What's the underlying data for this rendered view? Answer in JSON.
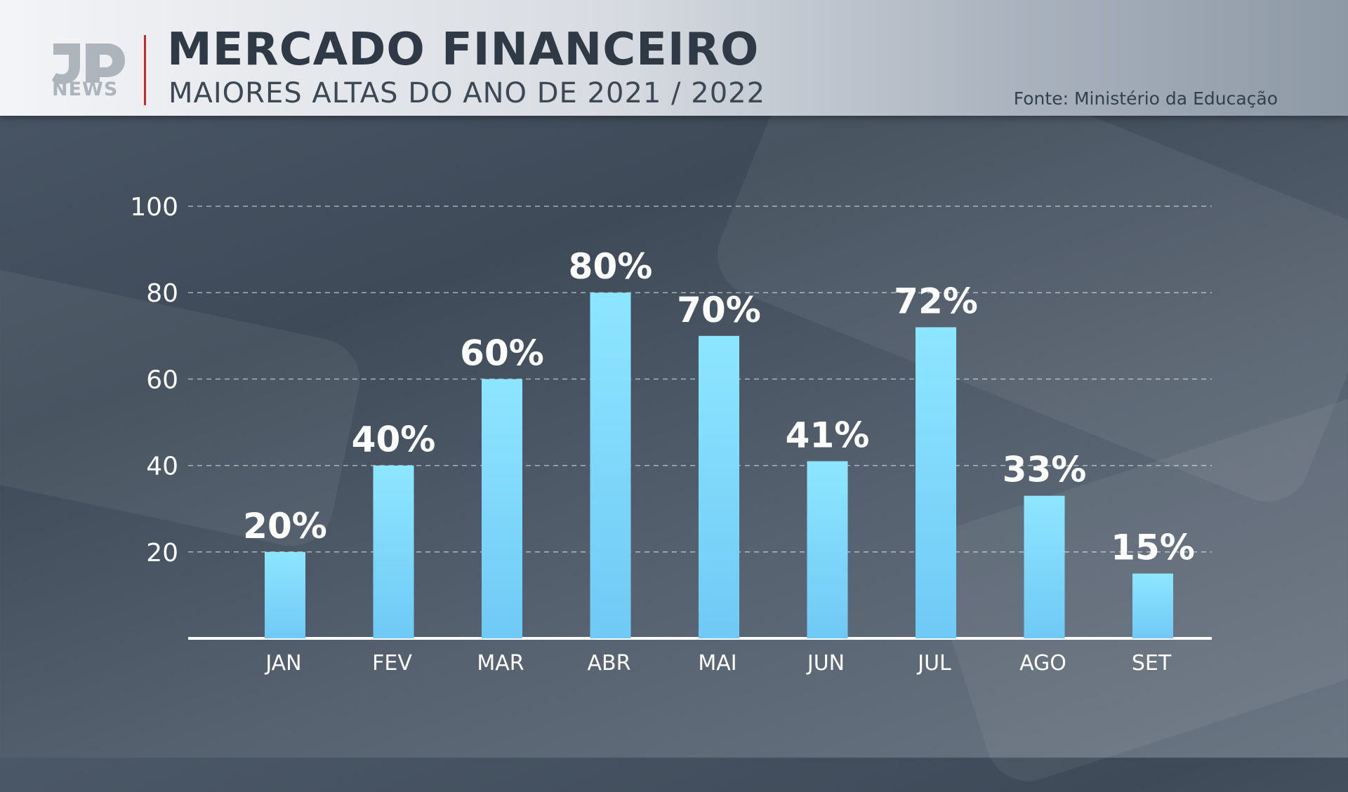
{
  "header": {
    "logo_text": "NEWS",
    "title": "MERCADO FINANCEIRO",
    "subtitle": "MAIORES ALTAS DO ANO DE 2021 / 2022",
    "source": "Fonte: Ministério da Educação"
  },
  "colors": {
    "bar_top": "#8de6ff",
    "bar_bottom": "#6fc9f5",
    "accent_divider": "#c42a2f",
    "text": "#ffffff"
  },
  "chart_data": {
    "type": "bar",
    "categories": [
      "JAN",
      "FEV",
      "MAR",
      "ABR",
      "MAI",
      "JUN",
      "JUL",
      "AGO",
      "SET"
    ],
    "values": [
      20,
      40,
      60,
      80,
      70,
      41,
      72,
      33,
      15
    ],
    "data_labels": [
      "20%",
      "40%",
      "60%",
      "80%",
      "70%",
      "41%",
      "72%",
      "33%",
      "15%"
    ],
    "yticks": [
      20,
      40,
      60,
      80,
      100
    ],
    "ylim": [
      0,
      100
    ],
    "grid": true,
    "legend": "none"
  }
}
